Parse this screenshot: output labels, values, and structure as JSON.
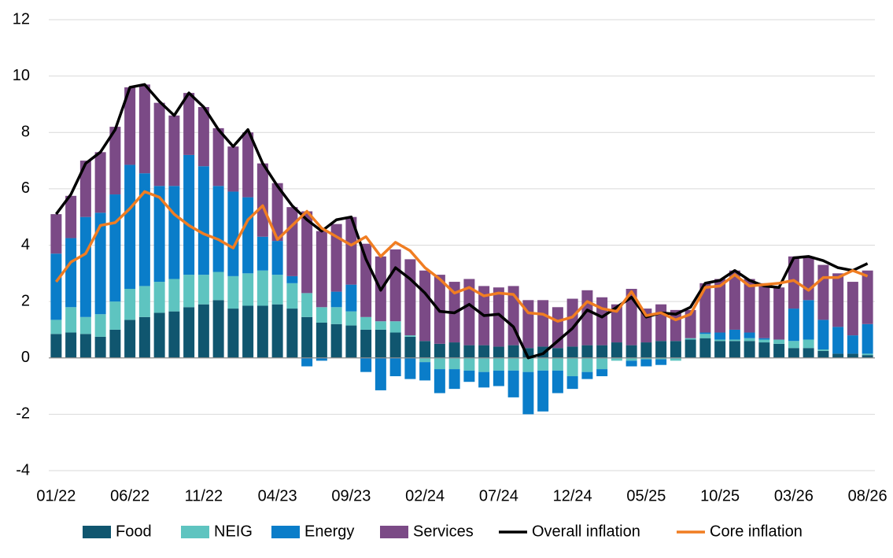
{
  "chart_data": {
    "type": "stacked-bar-line",
    "categories": [
      "01/22",
      null,
      null,
      null,
      null,
      "06/22",
      null,
      null,
      null,
      null,
      "11/22",
      null,
      null,
      null,
      null,
      "04/23",
      null,
      null,
      null,
      null,
      "09/23",
      null,
      null,
      null,
      null,
      "02/24",
      null,
      null,
      null,
      null,
      "07/24",
      null,
      null,
      null,
      null,
      "12/24",
      null,
      null,
      null,
      null,
      "05/25",
      null,
      null,
      null,
      null,
      "10/25",
      null,
      null,
      null,
      null,
      "03/26",
      null,
      null,
      null,
      null,
      "08/26"
    ],
    "series": [
      {
        "name": "Food",
        "color": "#10566f",
        "kind": "bar",
        "values": [
          0.85,
          0.9,
          0.85,
          0.75,
          1.0,
          1.35,
          1.45,
          1.6,
          1.65,
          1.8,
          1.9,
          2.05,
          1.75,
          1.85,
          1.85,
          1.9,
          1.75,
          1.45,
          1.25,
          1.2,
          1.15,
          1.0,
          1.0,
          0.9,
          0.75,
          0.6,
          0.5,
          0.55,
          0.45,
          0.45,
          0.4,
          0.45,
          0.35,
          0.4,
          0.35,
          0.4,
          0.45,
          0.45,
          0.55,
          0.45,
          0.55,
          0.6,
          0.6,
          0.65,
          0.7,
          0.6,
          0.6,
          0.6,
          0.55,
          0.5,
          0.35,
          0.35,
          0.25,
          0.15,
          0.15,
          0.1
        ]
      },
      {
        "name": "NEIG",
        "color": "#5ec4c0",
        "kind": "bar",
        "values": [
          0.5,
          0.9,
          0.6,
          0.8,
          1.0,
          1.1,
          1.1,
          1.1,
          1.15,
          1.15,
          1.05,
          1.0,
          1.15,
          1.15,
          1.25,
          1.05,
          0.9,
          0.85,
          0.55,
          0.6,
          0.5,
          0.45,
          0.3,
          0.4,
          0.05,
          -0.15,
          -0.4,
          -0.4,
          -0.45,
          -0.5,
          -0.45,
          -0.45,
          -0.5,
          -0.45,
          -0.45,
          -0.65,
          -0.5,
          -0.4,
          -0.1,
          -0.1,
          -0.05,
          -0.05,
          -0.1,
          0.05,
          0.15,
          0.05,
          0.05,
          0.1,
          0.1,
          0.15,
          0.25,
          0.3,
          0.05,
          0.0,
          0.0,
          0.05
        ]
      },
      {
        "name": "Energy",
        "color": "#0a7dc9",
        "kind": "bar",
        "values": [
          2.35,
          2.45,
          3.55,
          3.6,
          3.8,
          4.4,
          4.0,
          3.4,
          3.3,
          4.25,
          3.85,
          3.05,
          3.0,
          2.7,
          1.2,
          1.2,
          0.25,
          -0.3,
          -0.1,
          0.55,
          0.95,
          -0.5,
          -1.15,
          -0.65,
          -0.75,
          -0.65,
          -0.85,
          -0.7,
          -0.4,
          -0.55,
          -0.55,
          -0.95,
          -1.5,
          -1.45,
          -0.8,
          -0.45,
          -0.25,
          -0.25,
          0.0,
          -0.2,
          -0.25,
          -0.2,
          0.0,
          0.0,
          0.05,
          0.25,
          0.35,
          0.2,
          0.05,
          0.0,
          1.15,
          1.4,
          1.05,
          0.95,
          0.65,
          1.05
        ]
      },
      {
        "name": "Services",
        "color": "#7b4a86",
        "kind": "bar",
        "values": [
          1.4,
          1.5,
          2.0,
          2.15,
          2.4,
          2.75,
          3.15,
          2.95,
          2.5,
          2.2,
          2.1,
          2.05,
          1.6,
          2.3,
          2.6,
          2.05,
          2.45,
          2.9,
          2.7,
          2.4,
          2.4,
          2.6,
          2.3,
          2.55,
          2.7,
          2.5,
          2.45,
          2.15,
          2.35,
          2.1,
          2.1,
          2.1,
          1.7,
          1.65,
          1.45,
          1.7,
          1.95,
          1.7,
          1.35,
          2.0,
          1.2,
          1.3,
          1.1,
          1.0,
          1.75,
          1.9,
          2.1,
          1.9,
          1.95,
          1.85,
          1.85,
          1.55,
          1.95,
          1.9,
          1.9,
          1.9
        ]
      },
      {
        "name": "Overall inflation",
        "color": "#000000",
        "kind": "line",
        "values": [
          5.1,
          5.8,
          6.9,
          7.3,
          8.1,
          9.6,
          9.7,
          9.1,
          8.6,
          9.4,
          8.9,
          8.1,
          7.5,
          8.1,
          6.9,
          6.1,
          5.4,
          4.9,
          4.5,
          4.9,
          5.0,
          3.5,
          2.4,
          3.2,
          2.8,
          2.3,
          1.65,
          1.6,
          1.9,
          1.5,
          1.55,
          1.1,
          0.0,
          0.15,
          0.6,
          1.05,
          1.7,
          1.45,
          1.8,
          2.15,
          1.45,
          1.6,
          1.55,
          1.8,
          2.65,
          2.75,
          3.1,
          2.75,
          2.55,
          2.5,
          3.55,
          3.6,
          3.45,
          3.2,
          3.1,
          3.35
        ]
      },
      {
        "name": "Core inflation",
        "color": "#f07d22",
        "kind": "line",
        "values": [
          2.7,
          3.4,
          3.7,
          4.7,
          4.8,
          5.3,
          5.9,
          5.7,
          5.1,
          4.7,
          4.4,
          4.2,
          3.9,
          4.9,
          5.4,
          4.2,
          4.7,
          5.2,
          4.6,
          4.3,
          4.0,
          4.3,
          3.6,
          4.1,
          3.8,
          3.2,
          2.8,
          2.3,
          2.5,
          2.2,
          2.3,
          2.25,
          1.6,
          1.55,
          1.3,
          1.45,
          2.0,
          1.75,
          1.65,
          2.35,
          1.5,
          1.6,
          1.35,
          1.55,
          2.5,
          2.55,
          2.95,
          2.55,
          2.6,
          2.65,
          2.75,
          2.4,
          2.85,
          2.85,
          3.1,
          2.9
        ]
      }
    ],
    "ylim": [
      -4,
      12
    ],
    "yticks": [
      -4,
      -2,
      0,
      2,
      4,
      6,
      8,
      10,
      12
    ],
    "grid": true,
    "legend": "bottom"
  }
}
